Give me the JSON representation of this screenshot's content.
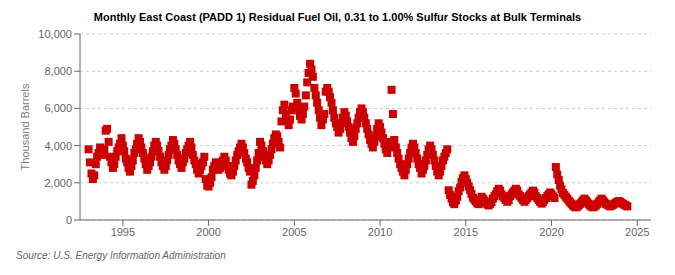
{
  "chart_data": {
    "type": "scatter",
    "title": "Monthly East Coast (PADD 1) Residual Fuel Oil, 0.31 to 1.00% Sulfur Stocks at Bulk Terminals",
    "y_label": "Thousand Barrels",
    "annotations": [
      "Source: U.S. Energy Information Administration"
    ],
    "color": "#CC0000",
    "marker": "square",
    "grid": "y",
    "xlim": [
      1992.5,
      2025.8
    ],
    "xticks": [
      1995,
      2000,
      2005,
      2010,
      2015,
      2020,
      2025
    ],
    "ylim": [
      0,
      10000
    ],
    "yticks": [
      0,
      {
        "value": 2000,
        "label": "2,000"
      },
      {
        "value": 4000,
        "label": "4,000"
      },
      {
        "value": 6000,
        "label": "6,000"
      },
      {
        "value": 8000,
        "label": "8,000"
      },
      {
        "value": 10000,
        "label": "10,000"
      }
    ],
    "x": [
      1993.0,
      1993.08,
      1993.17,
      1993.25,
      1993.33,
      1993.42,
      1993.5,
      1993.58,
      1993.67,
      1993.75,
      1993.83,
      1993.92,
      1994.0,
      1994.08,
      1994.17,
      1994.25,
      1994.33,
      1994.42,
      1994.5,
      1994.58,
      1994.67,
      1994.75,
      1994.83,
      1994.92,
      1995.0,
      1995.08,
      1995.17,
      1995.25,
      1995.33,
      1995.42,
      1995.5,
      1995.58,
      1995.67,
      1995.75,
      1995.83,
      1995.92,
      1996.0,
      1996.08,
      1996.17,
      1996.25,
      1996.33,
      1996.42,
      1996.5,
      1996.58,
      1996.67,
      1996.75,
      1996.83,
      1996.92,
      1997.0,
      1997.08,
      1997.17,
      1997.25,
      1997.33,
      1997.42,
      1997.5,
      1997.58,
      1997.67,
      1997.75,
      1997.83,
      1997.92,
      1998.0,
      1998.08,
      1998.17,
      1998.25,
      1998.33,
      1998.42,
      1998.5,
      1998.58,
      1998.67,
      1998.75,
      1998.83,
      1998.92,
      1999.0,
      1999.08,
      1999.17,
      1999.25,
      1999.33,
      1999.42,
      1999.5,
      1999.58,
      1999.67,
      1999.75,
      1999.83,
      1999.92,
      2000.0,
      2000.08,
      2000.17,
      2000.25,
      2000.33,
      2000.42,
      2000.5,
      2000.58,
      2000.67,
      2000.75,
      2000.83,
      2000.92,
      2001.0,
      2001.08,
      2001.17,
      2001.25,
      2001.33,
      2001.42,
      2001.5,
      2001.58,
      2001.67,
      2001.75,
      2001.83,
      2001.92,
      2002.0,
      2002.08,
      2002.17,
      2002.25,
      2002.33,
      2002.42,
      2002.5,
      2002.58,
      2002.67,
      2002.75,
      2002.83,
      2002.92,
      2003.0,
      2003.08,
      2003.17,
      2003.25,
      2003.33,
      2003.42,
      2003.5,
      2003.58,
      2003.67,
      2003.75,
      2003.83,
      2003.92,
      2004.0,
      2004.08,
      2004.17,
      2004.25,
      2004.33,
      2004.42,
      2004.5,
      2004.58,
      2004.67,
      2004.75,
      2004.83,
      2004.92,
      2005.0,
      2005.08,
      2005.17,
      2005.25,
      2005.33,
      2005.42,
      2005.5,
      2005.58,
      2005.67,
      2005.75,
      2005.83,
      2005.92,
      2006.0,
      2006.08,
      2006.17,
      2006.25,
      2006.33,
      2006.42,
      2006.5,
      2006.58,
      2006.67,
      2006.75,
      2006.83,
      2006.92,
      2007.0,
      2007.08,
      2007.17,
      2007.25,
      2007.33,
      2007.42,
      2007.5,
      2007.58,
      2007.67,
      2007.75,
      2007.83,
      2007.92,
      2008.0,
      2008.08,
      2008.17,
      2008.25,
      2008.33,
      2008.42,
      2008.5,
      2008.58,
      2008.67,
      2008.75,
      2008.83,
      2008.92,
      2009.0,
      2009.08,
      2009.17,
      2009.25,
      2009.33,
      2009.42,
      2009.5,
      2009.58,
      2009.67,
      2009.75,
      2009.83,
      2009.92,
      2010.0,
      2010.08,
      2010.17,
      2010.25,
      2010.33,
      2010.42,
      2010.5,
      2010.58,
      2010.67,
      2010.75,
      2010.83,
      2010.92,
      2011.0,
      2011.08,
      2011.17,
      2011.25,
      2011.33,
      2011.42,
      2011.5,
      2011.58,
      2011.67,
      2011.75,
      2011.83,
      2011.92,
      2012.0,
      2012.08,
      2012.17,
      2012.25,
      2012.33,
      2012.42,
      2012.5,
      2012.58,
      2012.67,
      2012.75,
      2012.83,
      2012.92,
      2013.0,
      2013.08,
      2013.17,
      2013.25,
      2013.33,
      2013.42,
      2013.5,
      2013.58,
      2013.67,
      2013.75,
      2013.83,
      2013.92,
      2014.0,
      2014.08,
      2014.17,
      2014.25,
      2014.33,
      2014.42,
      2014.5,
      2014.58,
      2014.67,
      2014.75,
      2014.83,
      2014.92,
      2015.0,
      2015.08,
      2015.17,
      2015.25,
      2015.33,
      2015.42,
      2015.5,
      2015.58,
      2015.67,
      2015.75,
      2015.83,
      2015.92,
      2016.0,
      2016.08,
      2016.17,
      2016.25,
      2016.33,
      2016.42,
      2016.5,
      2016.58,
      2016.67,
      2016.75,
      2016.83,
      2016.92,
      2017.0,
      2017.08,
      2017.17,
      2017.25,
      2017.33,
      2017.42,
      2017.5,
      2017.58,
      2017.67,
      2017.75,
      2017.83,
      2017.92,
      2018.0,
      2018.08,
      2018.17,
      2018.25,
      2018.33,
      2018.42,
      2018.5,
      2018.58,
      2018.67,
      2018.75,
      2018.83,
      2018.92,
      2019.0,
      2019.08,
      2019.17,
      2019.25,
      2019.33,
      2019.42,
      2019.5,
      2019.58,
      2019.67,
      2019.75,
      2019.83,
      2019.92,
      2020.0,
      2020.08,
      2020.17,
      2020.25,
      2020.33,
      2020.42,
      2020.5,
      2020.58,
      2020.67,
      2020.75,
      2020.83,
      2020.92,
      2021.0,
      2021.08,
      2021.17,
      2021.25,
      2021.33,
      2021.42,
      2021.5,
      2021.58,
      2021.67,
      2021.75,
      2021.83,
      2021.92,
      2022.0,
      2022.08,
      2022.17,
      2022.25,
      2022.33,
      2022.42,
      2022.5,
      2022.58,
      2022.67,
      2022.75,
      2022.83,
      2022.92,
      2023.0,
      2023.08,
      2023.17,
      2023.25,
      2023.33,
      2023.42,
      2023.5,
      2023.58,
      2023.67,
      2023.75,
      2023.83,
      2023.92,
      2024.0,
      2024.08,
      2024.17,
      2024.25,
      2024.33,
      2024.42
    ],
    "values": [
      3800,
      3100,
      2500,
      2200,
      2400,
      3000,
      3400,
      3600,
      3900,
      3700,
      3500,
      3800,
      4800,
      4900,
      4200,
      3400,
      3100,
      2800,
      3000,
      3400,
      3700,
      3900,
      4100,
      4400,
      4000,
      3700,
      3300,
      3100,
      2800,
      2600,
      2900,
      3200,
      3600,
      3800,
      4100,
      4400,
      4200,
      3900,
      3600,
      3300,
      3000,
      2700,
      2900,
      3100,
      3400,
      3700,
      4000,
      4200,
      4000,
      3700,
      3400,
      3100,
      2900,
      2700,
      2900,
      3200,
      3500,
      3800,
      4000,
      4300,
      4100,
      3800,
      3500,
      3200,
      3000,
      2800,
      3100,
      3300,
      3600,
      3800,
      4000,
      4200,
      3900,
      3500,
      3200,
      3000,
      2700,
      2500,
      2700,
      2900,
      3100,
      3400,
      2200,
      1850,
      1800,
      2000,
      2300,
      2700,
      2900,
      3100,
      2900,
      2700,
      2800,
      3000,
      3200,
      3400,
      3200,
      2900,
      2700,
      2500,
      2400,
      2600,
      2900,
      3200,
      3500,
      3700,
      3900,
      4100,
      3900,
      3600,
      3300,
      3100,
      2800,
      2600,
      1900,
      2100,
      2400,
      2800,
      3200,
      3600,
      4200,
      4000,
      3700,
      3400,
      3200,
      3000,
      3200,
      3500,
      3800,
      4100,
      4400,
      4600,
      4500,
      4200,
      3900,
      5300,
      5900,
      6200,
      5700,
      5400,
      5100,
      5400,
      5900,
      6100,
      7100,
      6800,
      6300,
      5900,
      5600,
      5400,
      5700,
      6100,
      6700,
      7400,
      7900,
      8400,
      8100,
      7700,
      7100,
      6700,
      6300,
      5900,
      5500,
      5100,
      5400,
      5700,
      6900,
      7100,
      6900,
      6600,
      6300,
      5900,
      5500,
      5200,
      5000,
      4700,
      4900,
      5200,
      5500,
      5800,
      5600,
      5300,
      5000,
      4700,
      4400,
      4200,
      4500,
      4900,
      5200,
      5500,
      5800,
      6000,
      5800,
      5500,
      5200,
      4900,
      4600,
      4300,
      4100,
      3900,
      4200,
      4500,
      4900,
      5200,
      5000,
      4700,
      4400,
      4100,
      3800,
      3600,
      3900,
      4200,
      7000,
      5700,
      4300,
      3900,
      3600,
      3300,
      3000,
      2800,
      2600,
      2400,
      2700,
      3000,
      3300,
      3600,
      3900,
      4100,
      3900,
      3600,
      3300,
      3000,
      2800,
      2500,
      2700,
      2900,
      3200,
      3500,
      3800,
      4000,
      3800,
      3500,
      3200,
      2900,
      2600,
      2400,
      2600,
      2900,
      3200,
      3400,
      3600,
      3800,
      1600,
      1350,
      1150,
      950,
      850,
      1050,
      1250,
      1550,
      1750,
      2050,
      2250,
      2400,
      2200,
      2000,
      1800,
      1600,
      1400,
      1200,
      1100,
      1000,
      900,
      850,
      1050,
      1250,
      1150,
      1050,
      950,
      850,
      780,
      870,
      970,
      1150,
      1280,
      1380,
      1550,
      1680,
      1580,
      1380,
      1280,
      1180,
      1080,
      980,
      1080,
      1280,
      1380,
      1480,
      1580,
      1680,
      1580,
      1380,
      1280,
      1180,
      1080,
      980,
      1080,
      1180,
      1280,
      1380,
      1480,
      1580,
      1480,
      1280,
      1180,
      1080,
      980,
      880,
      980,
      1080,
      1180,
      1280,
      1380,
      1480,
      1380,
      1280,
      1180,
      2850,
      2450,
      2150,
      1850,
      1650,
      1450,
      1350,
      1250,
      1150,
      1050,
      950,
      870,
      780,
      720,
      680,
      720,
      780,
      870,
      960,
      1050,
      1150,
      1050,
      960,
      870,
      780,
      720,
      680,
      720,
      780,
      870,
      960,
      1050,
      1150,
      1050,
      960,
      870,
      820,
      780,
      730,
      780,
      820,
      870,
      920,
      970,
      1020,
      970,
      920,
      870,
      820,
      780,
      730
    ]
  }
}
